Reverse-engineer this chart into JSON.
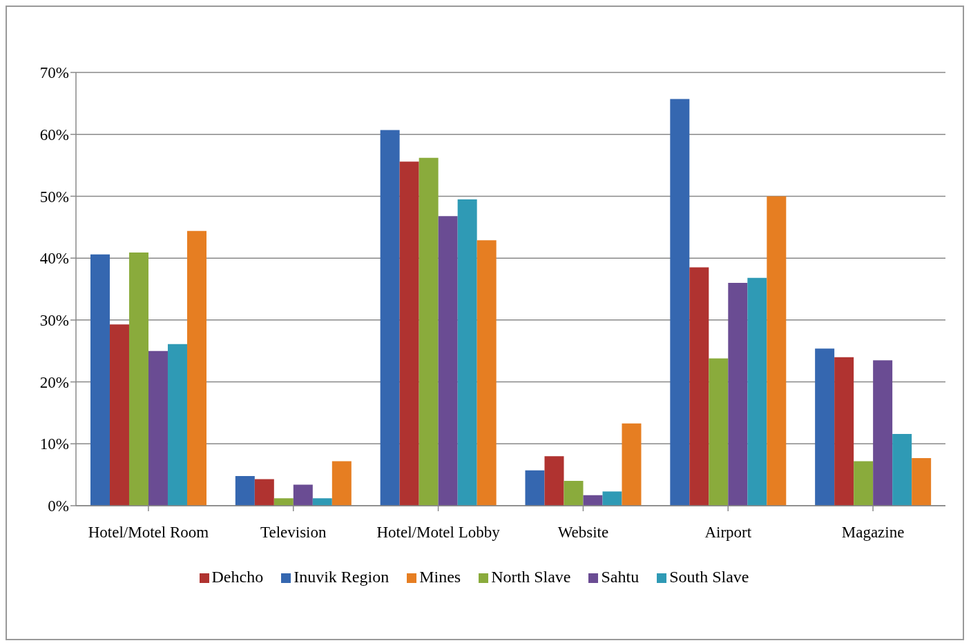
{
  "chart_data": {
    "type": "bar",
    "categories": [
      "Hotel/Motel Room",
      "Television",
      "Hotel/Motel Lobby",
      "Website",
      "Airport",
      "Magazine"
    ],
    "series": [
      {
        "name": "Inuvik Region",
        "color": "#3567b0",
        "values": [
          40.6,
          4.8,
          60.7,
          5.7,
          65.7,
          25.4
        ]
      },
      {
        "name": "Dehcho",
        "color": "#b03330",
        "values": [
          29.3,
          4.3,
          55.6,
          8.0,
          38.5,
          24.0
        ]
      },
      {
        "name": "North Slave",
        "color": "#8aab3c",
        "values": [
          40.9,
          1.2,
          56.2,
          4.0,
          23.8,
          7.2
        ]
      },
      {
        "name": "Sahtu",
        "color": "#6a4c93",
        "values": [
          25.0,
          3.4,
          46.8,
          1.7,
          36.0,
          23.5
        ]
      },
      {
        "name": "South Slave",
        "color": "#2f9ab5",
        "values": [
          26.1,
          1.2,
          49.5,
          2.3,
          36.8,
          11.6
        ]
      },
      {
        "name": "Mines",
        "color": "#e67e22",
        "values": [
          44.4,
          7.2,
          42.9,
          13.3,
          50.0,
          7.7
        ]
      }
    ],
    "ylim": [
      0,
      70
    ],
    "yticks": [
      {
        "value": 0,
        "label": "0%"
      },
      {
        "value": 10,
        "label": "10%"
      },
      {
        "value": 20,
        "label": "20%"
      },
      {
        "value": 30,
        "label": "30%"
      },
      {
        "value": 40,
        "label": "40%"
      },
      {
        "value": 50,
        "label": "50%"
      },
      {
        "value": 60,
        "label": "60%"
      },
      {
        "value": 70,
        "label": "70%"
      }
    ],
    "grid": "y",
    "legend": "bottom"
  }
}
